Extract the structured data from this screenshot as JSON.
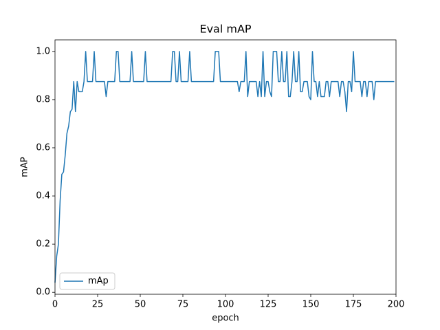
{
  "chart_data": {
    "type": "line",
    "title": "Eval mAP",
    "x_label": "epoch",
    "y_label": "mAP",
    "x": [
      0,
      1,
      2,
      3,
      4,
      5,
      6,
      7,
      8,
      9,
      10,
      11,
      12,
      13,
      14,
      15,
      16,
      17,
      18,
      19,
      20,
      21,
      22,
      23,
      24,
      25,
      26,
      27,
      28,
      29,
      30,
      31,
      32,
      33,
      34,
      35,
      36,
      37,
      38,
      39,
      40,
      41,
      42,
      43,
      44,
      45,
      46,
      47,
      48,
      49,
      50,
      51,
      52,
      53,
      54,
      55,
      56,
      57,
      58,
      59,
      60,
      61,
      62,
      63,
      64,
      65,
      66,
      67,
      68,
      69,
      70,
      71,
      72,
      73,
      74,
      75,
      76,
      77,
      78,
      79,
      80,
      81,
      82,
      83,
      84,
      85,
      86,
      87,
      88,
      89,
      90,
      91,
      92,
      93,
      94,
      95,
      96,
      97,
      98,
      99,
      100,
      101,
      102,
      103,
      104,
      105,
      106,
      107,
      108,
      109,
      110,
      111,
      112,
      113,
      114,
      115,
      116,
      117,
      118,
      119,
      120,
      121,
      122,
      123,
      124,
      125,
      126,
      127,
      128,
      129,
      130,
      131,
      132,
      133,
      134,
      135,
      136,
      137,
      138,
      139,
      140,
      141,
      142,
      143,
      144,
      145,
      146,
      147,
      148,
      149,
      150,
      151,
      152,
      153,
      154,
      155,
      156,
      157,
      158,
      159,
      160,
      161,
      162,
      163,
      164,
      165,
      166,
      167,
      168,
      169,
      170,
      171,
      172,
      173,
      174,
      175,
      176,
      177,
      178,
      179,
      180,
      181,
      182,
      183,
      184,
      185,
      186,
      187,
      188,
      189,
      190,
      191,
      192,
      193,
      194,
      195,
      196,
      197,
      198,
      199
    ],
    "series": [
      {
        "name": "mAp",
        "color": "#1f77b4",
        "values": [
          0.04,
          0.15,
          0.2,
          0.38,
          0.49,
          0.5,
          0.57,
          0.66,
          0.69,
          0.75,
          0.76,
          0.875,
          0.75,
          0.875,
          0.833,
          0.833,
          0.833,
          0.875,
          1.0,
          0.875,
          0.875,
          0.875,
          0.875,
          1.0,
          0.875,
          0.875,
          0.875,
          0.875,
          0.875,
          0.875,
          0.8125,
          0.875,
          0.875,
          0.875,
          0.875,
          0.875,
          1.0,
          1.0,
          0.875,
          0.875,
          0.875,
          0.875,
          0.875,
          0.875,
          0.875,
          1.0,
          0.875,
          0.875,
          0.875,
          0.875,
          0.875,
          0.875,
          0.875,
          1.0,
          0.875,
          0.875,
          0.875,
          0.875,
          0.875,
          0.875,
          0.875,
          0.875,
          0.875,
          0.875,
          0.875,
          0.875,
          0.875,
          0.875,
          0.875,
          1.0,
          1.0,
          0.875,
          0.875,
          1.0,
          0.875,
          0.875,
          0.875,
          0.875,
          0.875,
          1.0,
          0.875,
          0.875,
          0.875,
          0.875,
          0.875,
          0.875,
          0.875,
          0.875,
          0.875,
          0.875,
          0.875,
          0.875,
          0.875,
          0.875,
          1.0,
          1.0,
          1.0,
          0.875,
          0.875,
          0.875,
          0.875,
          0.875,
          0.875,
          0.875,
          0.875,
          0.875,
          0.875,
          0.875,
          0.833,
          0.875,
          0.875,
          0.875,
          1.0,
          0.8125,
          0.875,
          0.875,
          0.875,
          0.875,
          0.875,
          0.8125,
          0.875,
          0.8125,
          1.0,
          0.8125,
          0.875,
          0.875,
          0.833,
          0.8125,
          1.0,
          1.0,
          1.0,
          0.875,
          0.875,
          1.0,
          0.875,
          0.875,
          1.0,
          0.8125,
          0.8125,
          0.875,
          1.0,
          0.875,
          0.875,
          1.0,
          0.833,
          0.833,
          0.875,
          0.875,
          0.875,
          0.8125,
          0.8,
          1.0,
          0.875,
          0.875,
          0.8125,
          0.875,
          0.8125,
          0.8125,
          0.8125,
          0.875,
          0.875,
          0.8125,
          0.875,
          0.875,
          0.875,
          0.875,
          0.875,
          0.8125,
          0.875,
          0.875,
          0.833,
          0.75,
          0.875,
          0.875,
          0.833,
          1.0,
          0.875,
          0.875,
          0.875,
          0.875,
          0.8125,
          0.875,
          0.875,
          0.8125,
          0.875,
          0.875,
          0.875,
          0.8,
          0.875,
          0.875,
          0.875,
          0.875,
          0.875,
          0.875,
          0.875,
          0.875,
          0.875,
          0.875,
          0.875,
          0.875
        ]
      }
    ],
    "xlim": [
      0,
      200
    ],
    "xticks": [
      0,
      25,
      50,
      75,
      100,
      125,
      150,
      175,
      200
    ],
    "ylim": [
      -0.008,
      1.048
    ],
    "yticks": [
      {
        "value": 0,
        "label": "0.0"
      },
      {
        "value": 0.2,
        "label": "0.2"
      },
      {
        "value": 0.4,
        "label": "0.4"
      },
      {
        "value": 0.6,
        "label": "0.6"
      },
      {
        "value": 0.8,
        "label": "0.8"
      },
      {
        "value": 1,
        "label": "1.0"
      }
    ],
    "grid": false,
    "legend": "lower left"
  }
}
